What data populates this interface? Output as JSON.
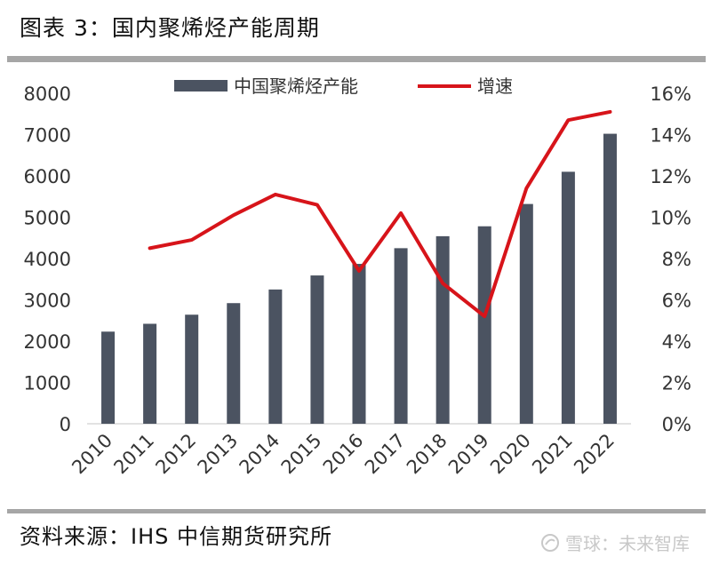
{
  "header": {
    "title": "图表 3：国内聚烯烃产能周期"
  },
  "footer": {
    "source": "资料来源：IHS 中信期货研究所",
    "watermark": "雪球：未来智库"
  },
  "colors": {
    "bar": "#4b5361",
    "line": "#d7141a",
    "rule": "#a6a6a6",
    "axis": "#d9d9d9"
  },
  "chart_data": {
    "type": "bar",
    "categories": [
      "2010",
      "2011",
      "2012",
      "2013",
      "2014",
      "2015",
      "2016",
      "2017",
      "2018",
      "2019",
      "2020",
      "2021",
      "2022"
    ],
    "series": [
      {
        "name": "中国聚烯烃产能",
        "type": "bar",
        "axis": "left",
        "values": [
          2230,
          2420,
          2640,
          2920,
          3250,
          3590,
          3870,
          4250,
          4540,
          4780,
          5320,
          6100,
          7020
        ]
      },
      {
        "name": "增速",
        "type": "line",
        "axis": "right",
        "values": [
          null,
          0.085,
          0.089,
          0.101,
          0.111,
          0.106,
          0.074,
          0.102,
          0.068,
          0.052,
          0.114,
          0.147,
          0.151
        ]
      }
    ],
    "left_axis": {
      "ylim": [
        0,
        8000
      ],
      "ticks": [
        "0",
        "1000",
        "2000",
        "3000",
        "4000",
        "5000",
        "6000",
        "7000",
        "8000"
      ]
    },
    "right_axis": {
      "ylim": [
        0,
        0.16
      ],
      "ticks": [
        "0%",
        "2%",
        "4%",
        "6%",
        "8%",
        "10%",
        "12%",
        "14%",
        "16%"
      ]
    },
    "legend": {
      "placement": "top-center",
      "entries": [
        "中国聚烯烃产能",
        "增速"
      ]
    },
    "grid": false
  }
}
